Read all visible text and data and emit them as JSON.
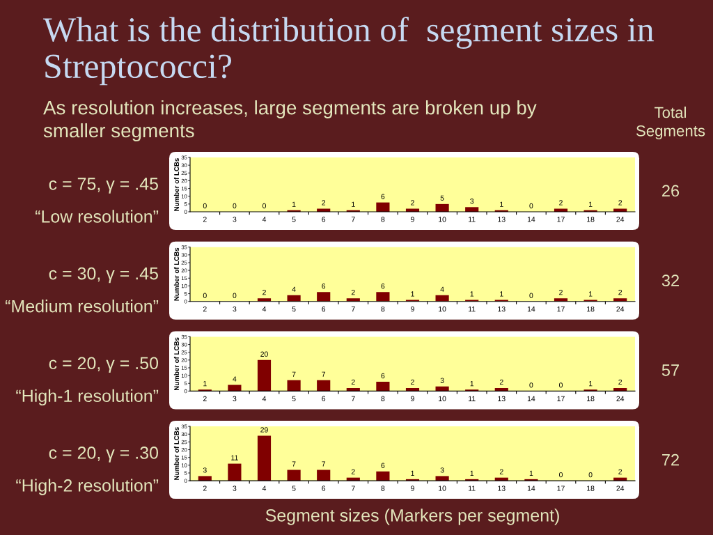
{
  "chart_data": [
    {
      "type": "bar",
      "title": "What is the distribution of  segment sizes in Streptococci?",
      "subtitle": "As resolution increases, large segments are broken up by smaller segments",
      "ylabel": "Number of LCBs",
      "categories": [
        "2",
        "3",
        "4",
        "5",
        "6",
        "7",
        "8",
        "9",
        "10",
        "11",
        "13",
        "14",
        "17",
        "18",
        "24"
      ],
      "values": [
        0,
        0,
        0,
        1,
        2,
        1,
        6,
        2,
        5,
        3,
        1,
        0,
        2,
        1,
        2
      ],
      "color": "#800000",
      "ylim": [
        0,
        35
      ],
      "yticks": [
        0,
        5,
        10,
        15,
        20,
        25,
        30,
        35
      ],
      "data_labels": true,
      "annotations": [
        "c = 75, γ = .45",
        "“Low resolution”",
        "26",
        "Total Segments"
      ]
    },
    {
      "type": "bar",
      "ylabel": "Number of LCBs",
      "categories": [
        "2",
        "3",
        "4",
        "5",
        "6",
        "7",
        "8",
        "9",
        "10",
        "11",
        "13",
        "14",
        "17",
        "18",
        "24"
      ],
      "values": [
        0,
        0,
        2,
        4,
        6,
        2,
        6,
        1,
        4,
        1,
        1,
        0,
        2,
        1,
        2
      ],
      "color": "#800000",
      "ylim": [
        0,
        35
      ],
      "yticks": [
        0,
        5,
        10,
        15,
        20,
        25,
        30,
        35
      ],
      "data_labels": true,
      "annotations": [
        "c = 30, γ = .45",
        "“Medium resolution”",
        "32"
      ]
    },
    {
      "type": "bar",
      "ylabel": "Number of LCBs",
      "categories": [
        "2",
        "3",
        "4",
        "5",
        "6",
        "7",
        "8",
        "9",
        "10",
        "11",
        "13",
        "14",
        "17",
        "18",
        "24"
      ],
      "values": [
        1,
        4,
        20,
        7,
        7,
        2,
        6,
        2,
        3,
        1,
        2,
        0,
        0,
        1,
        2
      ],
      "color": "#800000",
      "ylim": [
        0,
        35
      ],
      "yticks": [
        0,
        5,
        10,
        15,
        20,
        25,
        30,
        35
      ],
      "data_labels": true,
      "annotations": [
        "c = 20, γ = .50",
        "“High-1 resolution”",
        "57"
      ]
    },
    {
      "type": "bar",
      "ylabel": "Number of LCBs",
      "xlabel": "Segment sizes (Markers per segment)",
      "categories": [
        "2",
        "3",
        "4",
        "5",
        "6",
        "7",
        "8",
        "9",
        "10",
        "11",
        "13",
        "14",
        "17",
        "18",
        "24"
      ],
      "values": [
        3,
        11,
        29,
        7,
        7,
        2,
        6,
        1,
        3,
        1,
        2,
        1,
        0,
        0,
        2
      ],
      "color": "#800000",
      "ylim": [
        0,
        35
      ],
      "yticks": [
        0,
        5,
        10,
        15,
        20,
        25,
        30,
        35
      ],
      "data_labels": true,
      "annotations": [
        "c = 20, γ = .30",
        "“High-2 resolution”",
        "72"
      ]
    }
  ]
}
